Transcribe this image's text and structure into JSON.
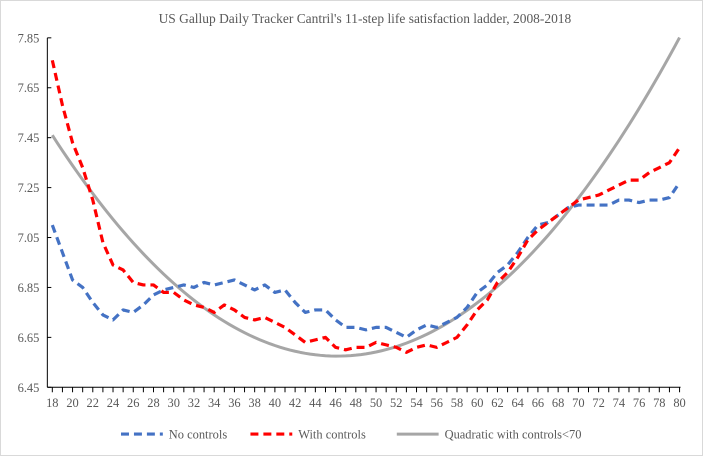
{
  "chart_data": {
    "type": "line",
    "title": "US Gallup Daily Tracker Cantril's 11-step life satisfaction ladder, 2008-2018",
    "xlabel": "",
    "ylabel": "",
    "xlim": [
      18,
      80
    ],
    "ylim": [
      6.45,
      7.85
    ],
    "x_ticks": [
      18,
      20,
      22,
      24,
      26,
      28,
      30,
      32,
      34,
      36,
      38,
      40,
      42,
      44,
      46,
      48,
      50,
      52,
      54,
      56,
      58,
      60,
      62,
      64,
      66,
      68,
      70,
      72,
      74,
      76,
      78,
      80
    ],
    "y_ticks": [
      "6.45",
      "6.65",
      "6.85",
      "7.05",
      "7.25",
      "7.45",
      "7.65",
      "7.85"
    ],
    "grid": false,
    "legend_position": "bottom",
    "x": [
      18,
      19,
      20,
      21,
      22,
      23,
      24,
      25,
      26,
      27,
      28,
      29,
      30,
      31,
      32,
      33,
      34,
      35,
      36,
      37,
      38,
      39,
      40,
      41,
      42,
      43,
      44,
      45,
      46,
      47,
      48,
      49,
      50,
      51,
      52,
      53,
      54,
      55,
      56,
      57,
      58,
      59,
      60,
      61,
      62,
      63,
      64,
      65,
      66,
      67,
      68,
      69,
      70,
      71,
      72,
      73,
      74,
      75,
      76,
      77,
      78,
      79,
      80
    ],
    "series": [
      {
        "name": "No controls",
        "color": "#4472c4",
        "style": "dashed",
        "values": [
          7.1,
          6.99,
          6.88,
          6.85,
          6.79,
          6.74,
          6.72,
          6.76,
          6.75,
          6.78,
          6.82,
          6.84,
          6.85,
          6.86,
          6.85,
          6.87,
          6.86,
          6.87,
          6.88,
          6.86,
          6.84,
          6.86,
          6.83,
          6.84,
          6.79,
          6.75,
          6.76,
          6.76,
          6.72,
          6.69,
          6.69,
          6.68,
          6.69,
          6.69,
          6.67,
          6.65,
          6.68,
          6.7,
          6.69,
          6.71,
          6.73,
          6.77,
          6.83,
          6.86,
          6.91,
          6.94,
          6.99,
          7.05,
          7.1,
          7.11,
          7.14,
          7.17,
          7.18,
          7.18,
          7.18,
          7.18,
          7.2,
          7.2,
          7.19,
          7.2,
          7.2,
          7.21,
          7.27
        ]
      },
      {
        "name": "With controls",
        "color": "#ff0000",
        "style": "dashed",
        "values": [
          7.76,
          7.58,
          7.43,
          7.33,
          7.2,
          7.03,
          6.94,
          6.92,
          6.87,
          6.86,
          6.86,
          6.83,
          6.83,
          6.8,
          6.78,
          6.77,
          6.75,
          6.78,
          6.76,
          6.73,
          6.72,
          6.73,
          6.71,
          6.69,
          6.66,
          6.63,
          6.64,
          6.65,
          6.61,
          6.6,
          6.61,
          6.61,
          6.63,
          6.62,
          6.61,
          6.59,
          6.61,
          6.62,
          6.61,
          6.63,
          6.65,
          6.7,
          6.76,
          6.8,
          6.87,
          6.91,
          6.97,
          7.04,
          7.08,
          7.11,
          7.14,
          7.17,
          7.2,
          7.21,
          7.22,
          7.24,
          7.26,
          7.28,
          7.28,
          7.31,
          7.33,
          7.35,
          7.41
        ]
      },
      {
        "name": "Quadratic with controls<70",
        "color": "#a6a6a6",
        "style": "solid",
        "quadratic": {
          "a": 0.001115,
          "vertex_x": 46.17,
          "vertex_y": 6.575
        }
      }
    ]
  }
}
